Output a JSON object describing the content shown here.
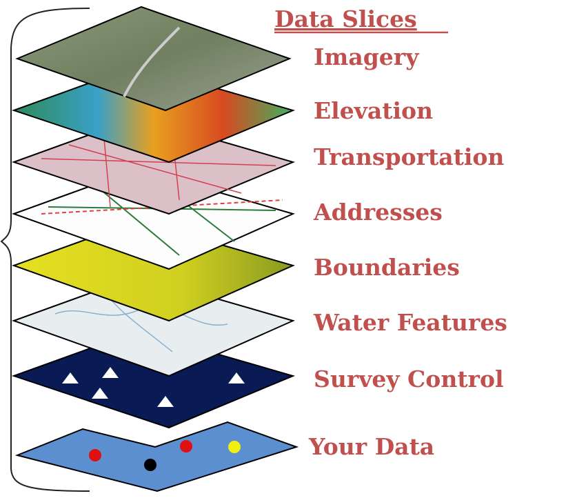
{
  "title": "Data Slices",
  "layers": [
    "Imagery",
    "Elevation",
    "Transportation",
    "Addresses",
    "Boundaries",
    "Water Features",
    "Survey Control",
    "Your Data"
  ]
}
